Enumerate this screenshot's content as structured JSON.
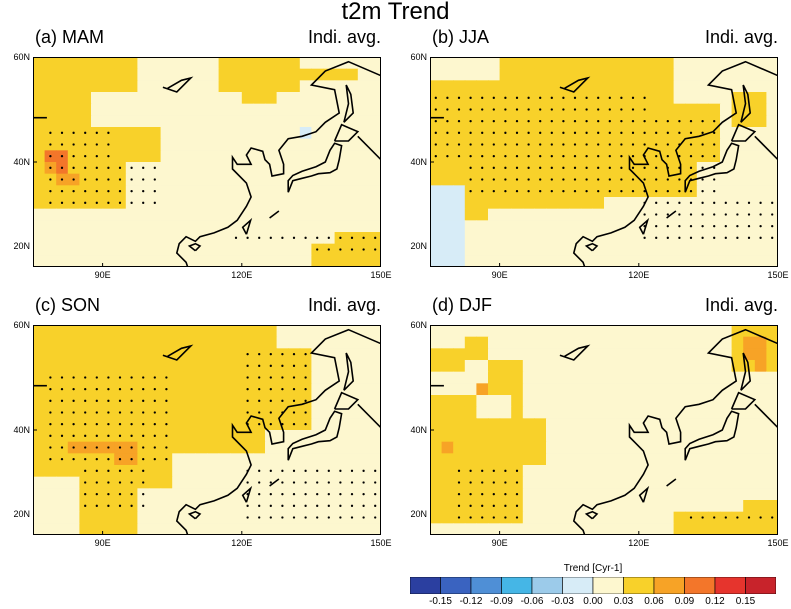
{
  "figure_title": "t2m Trend",
  "panels": [
    {
      "id": "mam",
      "label": "(a) MAM",
      "sublabel": "Indi. avg."
    },
    {
      "id": "jja",
      "label": "(b) JJA",
      "sublabel": "Indi. avg."
    },
    {
      "id": "son",
      "label": "(c) SON",
      "sublabel": "Indi. avg."
    },
    {
      "id": "djf",
      "label": "(d) DJF",
      "sublabel": "Indi. avg."
    }
  ],
  "lat_ticks": [
    "60N",
    "40N",
    "20N"
  ],
  "lon_ticks": [
    "90E",
    "120E",
    "150E"
  ],
  "colorbar": {
    "title": "Trend [Cyr-1]",
    "labels": [
      "-0.15",
      "-0.12",
      "-0.09",
      "-0.06",
      "-0.03",
      "0.00",
      "0.03",
      "0.06",
      "0.09",
      "0.12",
      "0.15"
    ],
    "colors": [
      "#2b3fa0",
      "#3a63c0",
      "#4f8fd6",
      "#45b6e6",
      "#9ccbea",
      "#d7ecf7",
      "#fdf7cf",
      "#f8d12a",
      "#f7a326",
      "#f3762a",
      "#e6342d",
      "#c8232b"
    ]
  },
  "map_extent": {
    "lon": [
      75,
      150
    ],
    "lat": [
      15,
      60
    ]
  }
}
